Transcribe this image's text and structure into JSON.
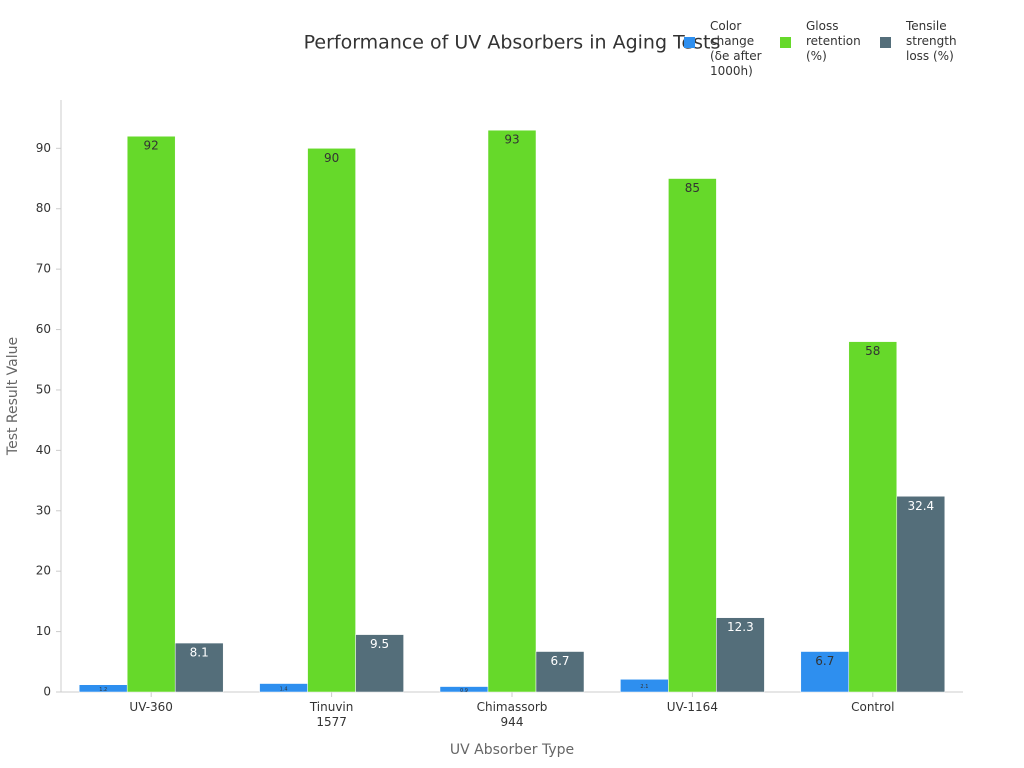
{
  "chart_data": {
    "type": "bar",
    "title": "Performance of UV Absorbers in Aging Tests",
    "x_label": "UV Absorber Type",
    "y_label": "Test Result Value",
    "categories": [
      "UV-360",
      "Tinuvin 1577",
      "Chimassorb 944",
      "UV-1164",
      "Control"
    ],
    "series": [
      {
        "name": "Color change (δe after 1000h)",
        "color": "#2e8fef",
        "values": [
          1.2,
          1.4,
          0.9,
          2.1,
          6.7
        ]
      },
      {
        "name": "Gloss retention (%)",
        "color": "#66d92a",
        "values": [
          92,
          90,
          93,
          85,
          58
        ]
      },
      {
        "name": "Tensile strength loss (%)",
        "color": "#546e7a",
        "values": [
          8.1,
          9.5,
          6.7,
          12.3,
          32.4
        ]
      }
    ],
    "ylim": [
      0,
      98
    ],
    "yticks": [
      0,
      10,
      20,
      30,
      40,
      50,
      60,
      70,
      80,
      90
    ],
    "grid": false,
    "legend": "top-right"
  }
}
